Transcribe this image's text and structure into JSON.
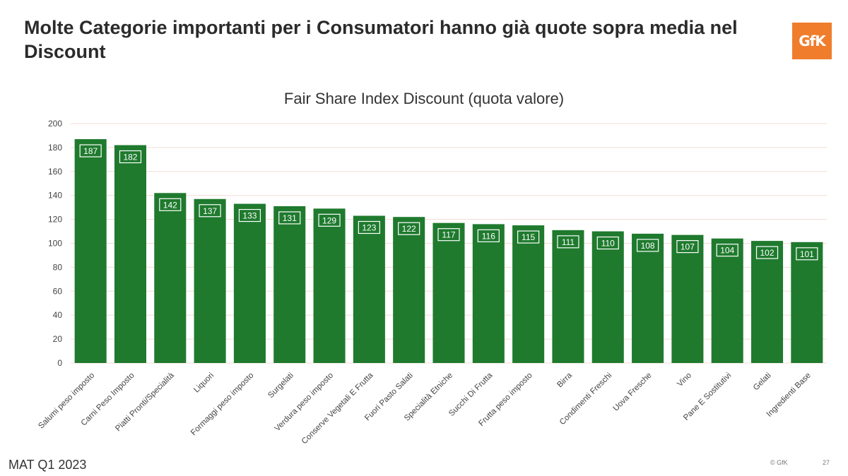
{
  "slide": {
    "headline": "Molte Categorie importanti per i Consumatori hanno già quote sopra media nel Discount",
    "logo_text": "GfK",
    "footer_left": "MAT Q1 2023",
    "footer_copyright": "© GfK",
    "page_number": "27"
  },
  "colors": {
    "bar": "#1f7a2e",
    "gridline": "#f2dcd6",
    "logo": "#f07d2c"
  },
  "chart_data": {
    "type": "bar",
    "title": "Fair Share Index Discount (quota valore)",
    "xlabel": "",
    "ylabel": "",
    "ylim": [
      0,
      200
    ],
    "yticks": [
      0,
      20,
      40,
      60,
      80,
      100,
      120,
      140,
      160,
      180,
      200
    ],
    "grid": true,
    "categories": [
      "Salumi peso imposto",
      "Carni Peso Imposto",
      "Piatti Pronti/Specialità",
      "Liquori",
      "Formaggi peso imposto",
      "Surgelati",
      "Verdura peso imposto",
      "Conserve Vegetali E Frutta",
      "Fuori Pasto Salati",
      "Specialità Etniche",
      "Succhi Di Frutta",
      "Frutta peso imposto",
      "Birra",
      "Condimenti Freschi",
      "Uova Fresche",
      "Vino",
      "Pane E Sostitutivi",
      "Gelati",
      "Ingredienti Base"
    ],
    "values": [
      187,
      182,
      142,
      137,
      133,
      131,
      129,
      123,
      122,
      117,
      116,
      115,
      111,
      110,
      108,
      107,
      104,
      102,
      101
    ]
  }
}
